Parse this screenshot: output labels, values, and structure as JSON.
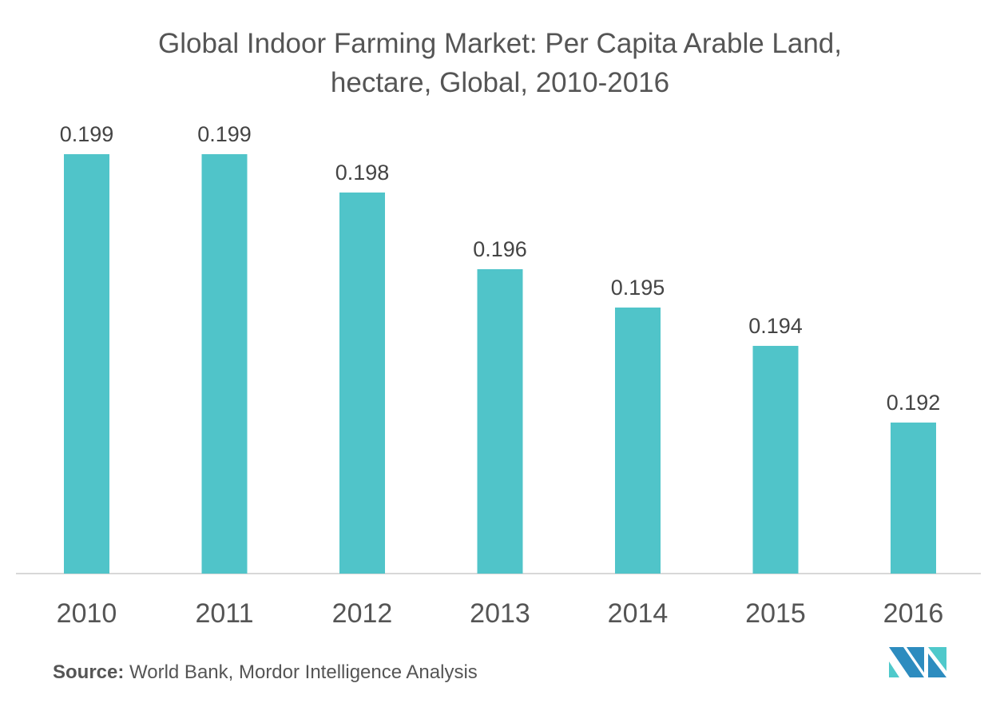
{
  "chart_data": {
    "type": "bar",
    "title_line1": "Global Indoor Farming Market: Per Capita Arable Land,",
    "title_line2": "hectare, Global, 2010-2016",
    "categories": [
      "2010",
      "2011",
      "2012",
      "2013",
      "2014",
      "2015",
      "2016"
    ],
    "values": [
      0.199,
      0.199,
      0.198,
      0.196,
      0.195,
      0.194,
      0.192
    ],
    "labels": [
      "0.199",
      "0.199",
      "0.198",
      "0.196",
      "0.195",
      "0.194",
      "0.192"
    ],
    "xlabel": "",
    "ylabel": "",
    "ylim": [
      0.18806,
      0.2
    ],
    "grid": false,
    "bar_color": "#50C4C9"
  },
  "source": {
    "label": "Source:",
    "text": " World Bank, Mordor Intelligence Analysis"
  },
  "logo_colors": {
    "dark": "#2D8CBF",
    "light": "#4FC9CB"
  }
}
